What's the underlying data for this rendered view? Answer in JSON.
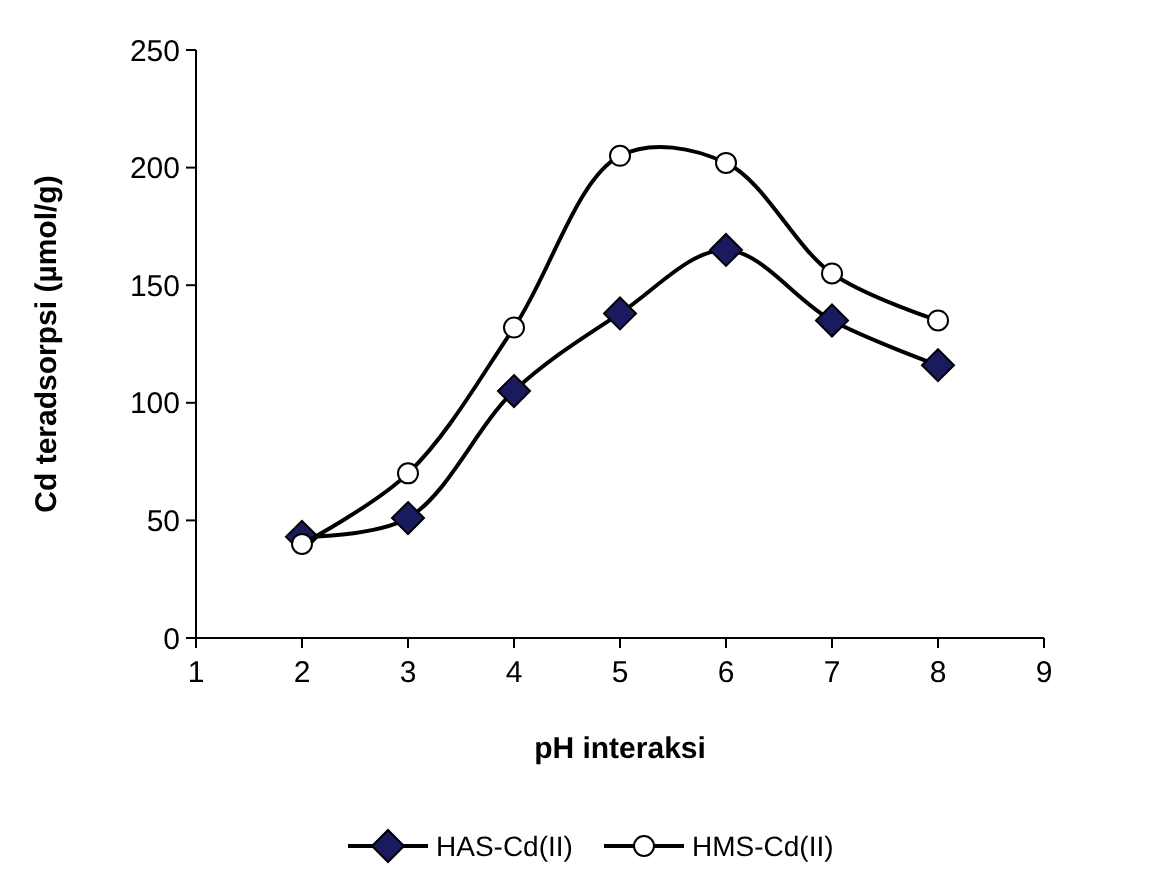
{
  "chart_data": {
    "type": "line",
    "xlabel": "pH interaksi",
    "ylabel": "Cd teradsorpsi (µmol/g)",
    "x": [
      2,
      3,
      4,
      5,
      6,
      7,
      8
    ],
    "xlim": [
      1,
      9
    ],
    "xticks": [
      1,
      2,
      3,
      4,
      5,
      6,
      7,
      8,
      9
    ],
    "ylim": [
      0,
      250
    ],
    "yticks": [
      0,
      50,
      100,
      150,
      200,
      250
    ],
    "grid": false,
    "legend": "bottom",
    "series": [
      {
        "name": "HAS-Cd(II)",
        "color": "#000000",
        "marker": "diamond",
        "values": [
          43,
          51,
          105,
          138,
          165,
          135,
          116
        ]
      },
      {
        "name": "HMS-Cd(II)",
        "color": "#000000",
        "marker": "circle",
        "values": [
          40,
          70,
          132,
          205,
          202,
          155,
          135
        ]
      }
    ]
  }
}
